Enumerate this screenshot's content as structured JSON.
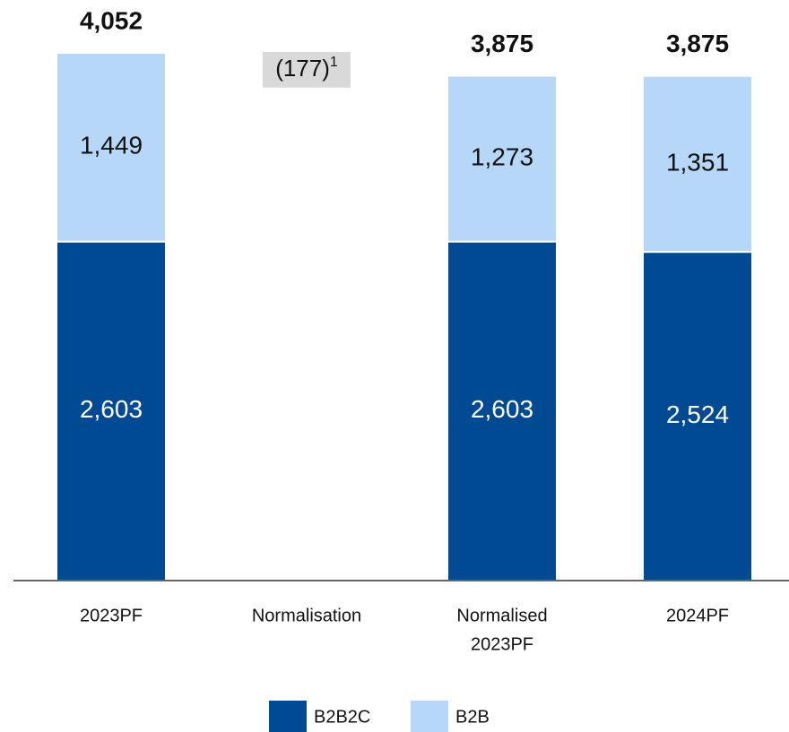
{
  "chart_data": {
    "type": "stacked_bar",
    "categories": [
      "2023PF",
      "Normalisation",
      [
        "Normalised",
        "2023PF"
      ],
      "2024PF"
    ],
    "series": [
      {
        "name": "B2B2C",
        "color": "#004a93",
        "text_color": "#ffffff",
        "values": [
          2603,
          null,
          2603,
          2524
        ],
        "value_labels": [
          "2,603",
          null,
          "2,603",
          "2,524"
        ]
      },
      {
        "name": "B2B",
        "color": "#b7d7f8",
        "text_color": "#111111",
        "values": [
          1449,
          null,
          1273,
          1351
        ],
        "value_labels": [
          "1,449",
          null,
          "1,273",
          "1,351"
        ]
      }
    ],
    "totals": {
      "values": [
        4052,
        -177,
        3875,
        3875
      ],
      "value_labels": [
        "4,052",
        "(177)",
        "3,875",
        "3,875"
      ],
      "change_color": "#d9d9d9"
    },
    "footnote": "1"
  }
}
